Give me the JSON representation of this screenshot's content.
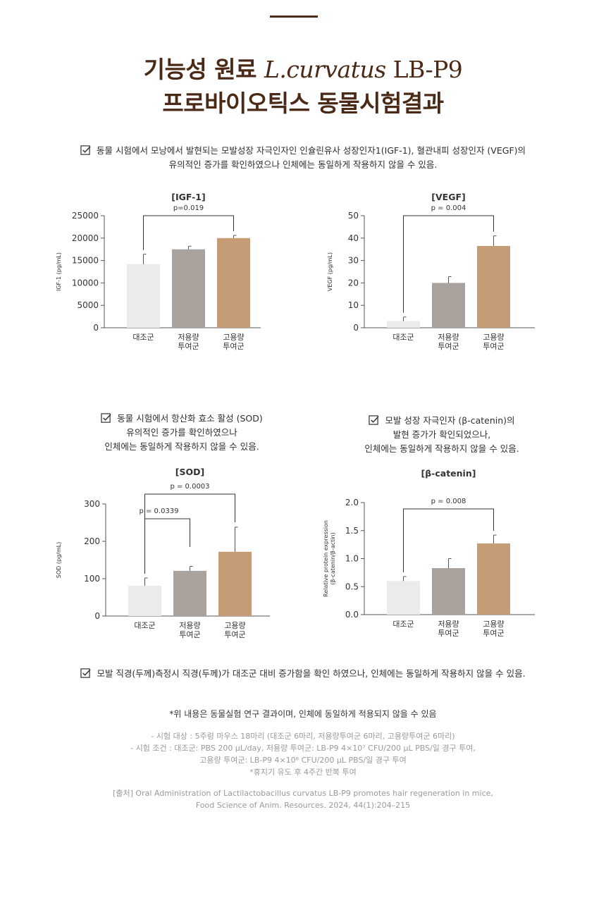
{
  "header": {
    "title_line1_ko": "기능성 원료 ",
    "title_line1_species": "L.curvatus",
    "title_line1_strain": " LB-P9",
    "title_line2": "프로바이오틱스 동물시험결과"
  },
  "notes": {
    "note1_line1": "동물 시험에서 모낭에서 발현되는 모발성장 자극인자인 인슐린유사 성장인자1(IGF-1), 혈관내피 성장인자 (VEGF)의",
    "note1_line2": "유의적인 증가를 확인하였으나 인체에는 동일하게 작용하지 않을 수 있음.",
    "note2_line1": "동물 시험에서 항산화 효소 활성 (SOD)",
    "note2_line2": "유의적인 증가를 확인하였으나",
    "note2_line3": "인체에는 동일하게 작용하지 않을 수 있음.",
    "note3_line1": "모발 성장 자극인자 (β-catenin)의",
    "note3_line2": "발현 증가가 확인되었으나,",
    "note3_line3": "인체에는 동일하게 작용하지 않을 수 있음.",
    "note4": "모발 직경(두께)측정시 직경(두께)가 대조군 대비 증가함을 확인 하였으나, 인체에는 동일하게 작용하지 않을 수 있음."
  },
  "colors": {
    "control": "#ecebe9",
    "low_dose": "#aaa29d",
    "high_dose": "#c69c76",
    "title": "#4a2a16",
    "axis": "#555555"
  },
  "chart_data": [
    {
      "type": "bar",
      "title": "[IGF-1]",
      "ylabel": "IGF-1 (pg/mL)",
      "categories": [
        "대조군",
        "저용량\n투여군",
        "고용량\n투여군"
      ],
      "values": [
        14200,
        17500,
        20000
      ],
      "errors": [
        2200,
        700,
        600
      ],
      "ylim": [
        0,
        25000
      ],
      "yticks": [
        0,
        5000,
        10000,
        15000,
        20000,
        25000
      ],
      "yticklabels": [
        "0",
        "5000",
        "10000",
        "15000",
        "20000",
        "25000"
      ],
      "significance": [
        {
          "from": 0,
          "to": 2,
          "label": "p=0.019"
        }
      ]
    },
    {
      "type": "bar",
      "title": "[VEGF]",
      "ylabel": "VEGF (pg/mL)",
      "categories": [
        "대조군",
        "저용량\n투여군",
        "고용량\n투여군"
      ],
      "values": [
        3,
        20,
        36.5
      ],
      "errors": [
        1.8,
        2.8,
        4.5
      ],
      "ylim": [
        0,
        50
      ],
      "yticks": [
        0,
        10,
        20,
        30,
        40,
        50
      ],
      "yticklabels": [
        "0",
        "10",
        "20",
        "30",
        "40",
        "50"
      ],
      "significance": [
        {
          "from": 0,
          "to": 2,
          "label": "p = 0.004"
        }
      ]
    },
    {
      "type": "bar",
      "title": "[SOD]",
      "ylabel": "SOD (pg/mL)",
      "categories": [
        "대조군",
        "저용량\n투여군",
        "고용량\n투여군"
      ],
      "values": [
        81,
        121,
        172
      ],
      "errors": [
        21,
        12,
        66
      ],
      "ylim": [
        0,
        300
      ],
      "yticks": [
        0,
        100,
        200,
        300
      ],
      "yticklabels": [
        "0",
        "100",
        "200",
        "300"
      ],
      "significance": [
        {
          "from": 0,
          "to": 1,
          "label": "p = 0.0339"
        },
        {
          "from": 0,
          "to": 2,
          "label": "p = 0.0003"
        }
      ]
    },
    {
      "type": "bar",
      "title": "[β-catenin]",
      "ylabel": "Relative protein expression\n(β-catenin/β-actin)",
      "categories": [
        "대조군",
        "저용량\n투여군",
        "고용량\n투여군"
      ],
      "values": [
        0.6,
        0.83,
        1.27
      ],
      "errors": [
        0.08,
        0.17,
        0.15
      ],
      "ylim": [
        0,
        2.0
      ],
      "yticks": [
        0,
        0.5,
        1.0,
        1.5,
        2.0
      ],
      "yticklabels": [
        "0.0",
        "0.5",
        "1.0",
        "1.5",
        "2.0"
      ],
      "significance": [
        {
          "from": 0,
          "to": 2,
          "label": "p = 0.008"
        }
      ]
    }
  ],
  "footer": {
    "disclaimer": "*위 내용은 동물실험 연구 결과이며, 인체에 동일하게 적용되지 않을 수 있음",
    "cond1": "- 시험 대상 : 5주령 마우스 18마리 (대조군 6마리, 저용량투여군 6마리, 고용량투여군 6마리)",
    "cond2": "- 시험 조건 : 대조군: PBS 200 μL/day, 저용량 투여군: LB-P9 4×10⁷ CFU/200 μL PBS/일 경구 투여,",
    "cond3": "고용량 투여군: LB-P9 4×10⁸ CFU/200 μL PBS/일 경구 투여",
    "cond4": "*휴지기 유도 후 4주간 반복 투여",
    "source1": "[출처] Oral Administration of Lactilactobacillus curvatus LB-P9 promotes hair regeneration in mice,",
    "source2": "Food Science of Anim. Resources. 2024, 44(1):204–215"
  }
}
